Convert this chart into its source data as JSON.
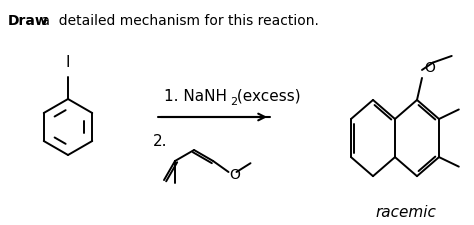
{
  "bg_color": "#ffffff",
  "line_color": "#000000",
  "title_bold": "Draw",
  "title_rest": " a  detailed mechanism for this reaction.",
  "reagent_line1": "1. NaNH",
  "reagent_sub": "2",
  "reagent_end": " (excess)",
  "reagent_num": "2.",
  "racemic_label": "racemic",
  "font_title": 10,
  "font_reagent": 11,
  "font_label": 11,
  "lw": 1.4
}
